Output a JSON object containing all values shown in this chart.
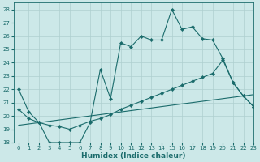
{
  "title": "",
  "xlabel": "Humidex (Indice chaleur)",
  "ylabel": "",
  "background_color": "#cce8e8",
  "grid_color": "#aecfcf",
  "line_color": "#1a6b6b",
  "xlim": [
    -0.5,
    23
  ],
  "ylim": [
    18,
    28.5
  ],
  "x_ticks": [
    0,
    1,
    2,
    3,
    4,
    5,
    6,
    7,
    8,
    9,
    10,
    11,
    12,
    13,
    14,
    15,
    16,
    17,
    18,
    19,
    20,
    21,
    22,
    23
  ],
  "y_ticks": [
    18,
    19,
    20,
    21,
    22,
    23,
    24,
    25,
    26,
    27,
    28
  ],
  "line1_x": [
    0,
    1,
    2,
    3,
    4,
    5,
    6,
    7,
    8,
    9,
    10,
    11,
    12,
    13,
    14,
    15,
    16,
    17,
    18,
    19,
    20,
    21,
    22,
    23
  ],
  "line1_y": [
    22,
    20.3,
    19.5,
    18,
    18,
    18,
    18,
    19.5,
    23.5,
    21.3,
    25.5,
    25.2,
    26,
    25.7,
    25.7,
    28,
    26.5,
    26.7,
    25.8,
    25.7,
    24.3,
    22.5,
    21.5,
    20.7
  ],
  "line2_x": [
    0,
    1,
    2,
    3,
    4,
    5,
    6,
    7,
    8,
    9,
    10,
    11,
    12,
    13,
    14,
    15,
    16,
    17,
    18,
    19,
    20,
    21,
    22,
    23
  ],
  "line2_y": [
    20.5,
    19.8,
    19.5,
    19.3,
    19.2,
    19.0,
    19.3,
    19.6,
    19.8,
    20.1,
    20.5,
    20.8,
    21.1,
    21.4,
    21.7,
    22.0,
    22.3,
    22.6,
    22.9,
    23.2,
    24.2,
    22.5,
    21.5,
    20.7
  ],
  "line3_x": [
    0,
    1,
    2,
    3,
    4,
    5,
    6,
    7,
    8,
    9,
    10,
    11,
    12,
    13,
    14,
    15,
    16,
    17,
    18,
    19,
    20,
    21,
    22,
    23
  ],
  "line3_y": [
    19.3,
    19.4,
    19.5,
    19.6,
    19.7,
    19.8,
    19.9,
    20.0,
    20.1,
    20.2,
    20.3,
    20.4,
    20.5,
    20.6,
    20.7,
    20.8,
    20.9,
    21.0,
    21.1,
    21.2,
    21.3,
    21.4,
    21.5,
    21.6
  ]
}
